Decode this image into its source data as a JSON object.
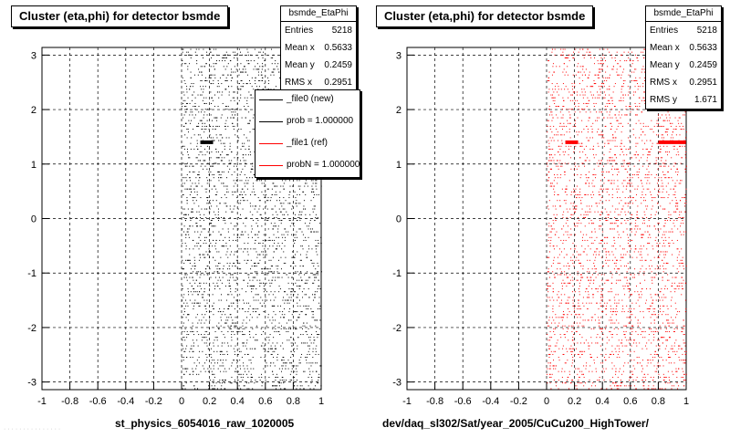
{
  "chart_data": [
    {
      "type": "scatter",
      "title": "Cluster (eta,phi) for detector bsmde",
      "xlabel": "st_physics_6054016_raw_1020005",
      "ylabel": "",
      "xlim": [
        -1,
        1
      ],
      "ylim": [
        -3.14,
        3.14
      ],
      "xticks": [
        "-1",
        "-0.8",
        "-0.6",
        "-0.4",
        "-0.2",
        "0",
        "0.2",
        "0.4",
        "0.6",
        "0.8",
        "1"
      ],
      "yticks": [
        "-3",
        "-2",
        "-1",
        "0",
        "1",
        "2",
        "3"
      ],
      "grid": true,
      "color": "#000000",
      "filled_region_x": [
        0,
        1
      ],
      "hotspots": [
        {
          "x": 0.18,
          "y": 1.4
        }
      ],
      "stats": {
        "name": "bsmde_EtaPhi",
        "rows": [
          {
            "label": "Entries",
            "value": "5218"
          },
          {
            "label": "Mean x",
            "value": "0.5633"
          },
          {
            "label": "Mean y",
            "value": "0.2459"
          },
          {
            "label": "RMS x",
            "value": "0.2951"
          }
        ]
      },
      "legend": {
        "position": "top-right",
        "entries": [
          {
            "label": "_file0 (new)",
            "color": "#000000"
          },
          {
            "label": "prob = 1.000000",
            "color": "#000000"
          },
          {
            "label": "_file1 (ref)",
            "color": "#ff0000"
          },
          {
            "label": "probN = 1.000000",
            "color": "#ff0000"
          }
        ]
      }
    },
    {
      "type": "scatter",
      "title": "Cluster (eta,phi) for detector bsmde",
      "xlabel": "dev/daq_sl302/Sat/year_2005/CuCu200_HighTower/",
      "ylabel": "",
      "xlim": [
        -1,
        1
      ],
      "ylim": [
        -3.14,
        3.14
      ],
      "xticks": [
        "-1",
        "-0.8",
        "-0.6",
        "-0.4",
        "-0.2",
        "0",
        "0.2",
        "0.4",
        "0.6",
        "0.8",
        "1"
      ],
      "yticks": [
        "-3",
        "-2",
        "-1",
        "0",
        "1",
        "2",
        "3"
      ],
      "grid": true,
      "color": "#ff0000",
      "filled_region_x": [
        0,
        1
      ],
      "hotspots": [
        {
          "x": 0.18,
          "y": 1.4
        },
        {
          "x": 0.9,
          "y": 1.4
        }
      ],
      "stats": {
        "name": "bsmde_EtaPhi",
        "rows": [
          {
            "label": "Entries",
            "value": "5218"
          },
          {
            "label": "Mean x",
            "value": "0.5633"
          },
          {
            "label": "Mean y",
            "value": "0.2459"
          },
          {
            "label": "RMS x",
            "value": "0.2951"
          },
          {
            "label": "RMS y",
            "value": "1.671"
          }
        ]
      }
    }
  ]
}
